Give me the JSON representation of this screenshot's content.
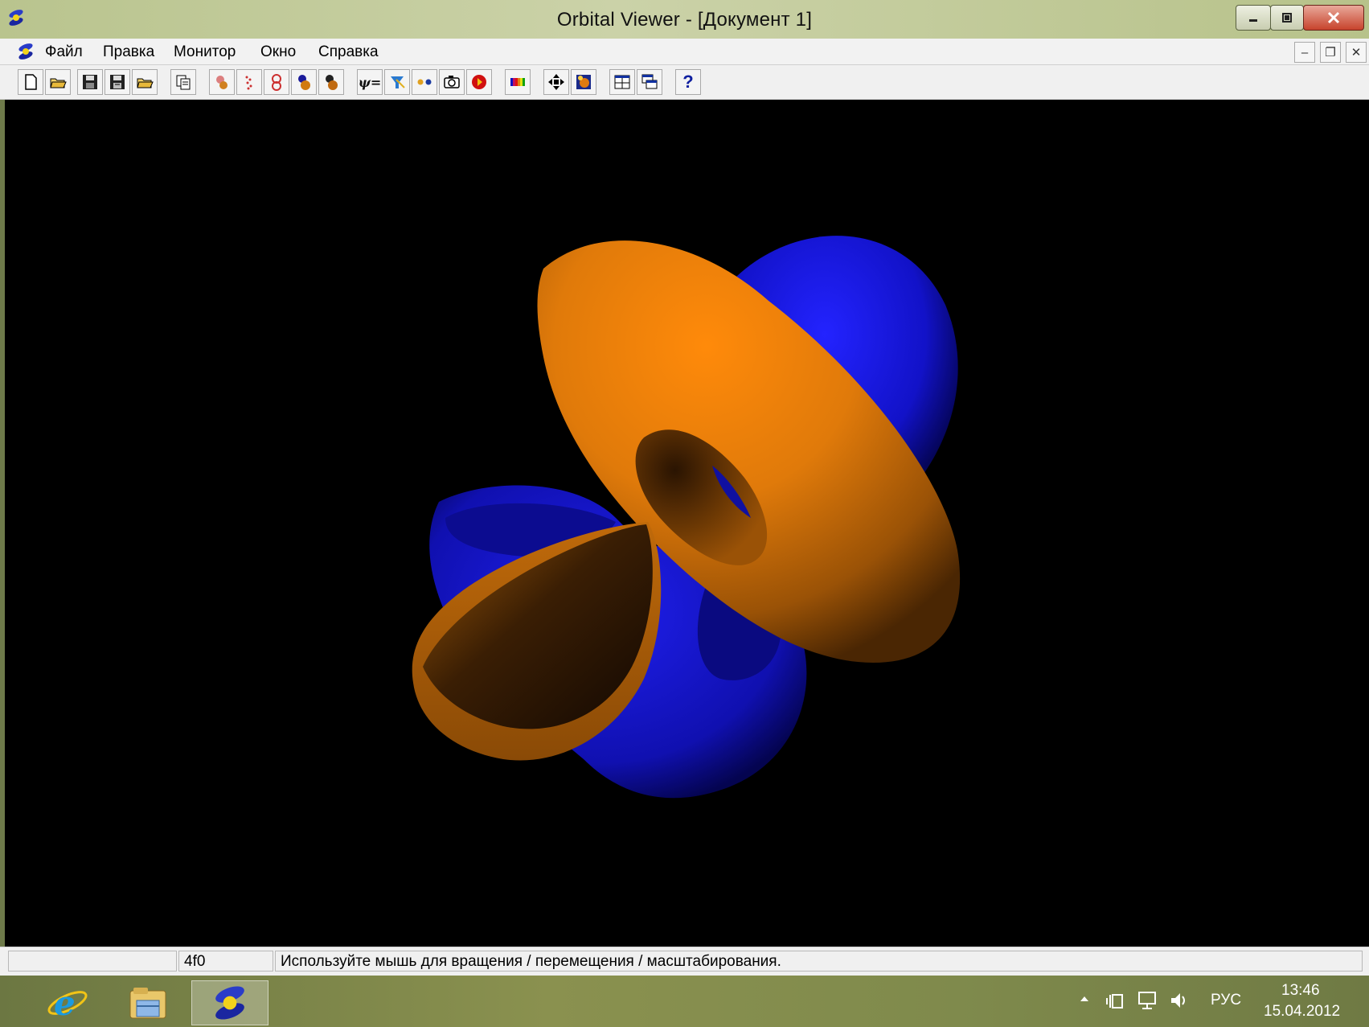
{
  "window": {
    "title": "Orbital Viewer - [Документ 1]"
  },
  "menu": {
    "items": [
      "Файл",
      "Правка",
      "Монитор",
      "Окно",
      "Справка"
    ]
  },
  "toolbar": {
    "buttons": [
      "new-icon",
      "open-icon",
      "save-icon",
      "save-as-icon",
      "open-folder-icon",
      "copy-icon",
      "orbital-1-icon",
      "orbital-2-icon",
      "orbital-3-icon",
      "orbital-4-icon",
      "orbital-5-icon",
      "psi-equals-icon",
      "funnel-icon",
      "dots-icon",
      "camera-icon",
      "record-icon",
      "color-bars-icon",
      "move-icon",
      "light-icon",
      "tile-icon",
      "cascade-icon",
      "help-icon"
    ],
    "help_label": "?",
    "psi_label": "ψ="
  },
  "orbital": {
    "positive_color": "#e07a0a",
    "negative_color": "#1414c8",
    "background": "#000000"
  },
  "status": {
    "pane1": "",
    "pane2": "4f0",
    "message": "Используйте мышь для вращения / перемещения / масштабирования."
  },
  "taskbar": {
    "apps": [
      "internet-explorer-icon",
      "file-explorer-icon",
      "orbital-viewer-icon"
    ],
    "language": "РУС",
    "time": "13:46",
    "date": "15.04.2012"
  }
}
